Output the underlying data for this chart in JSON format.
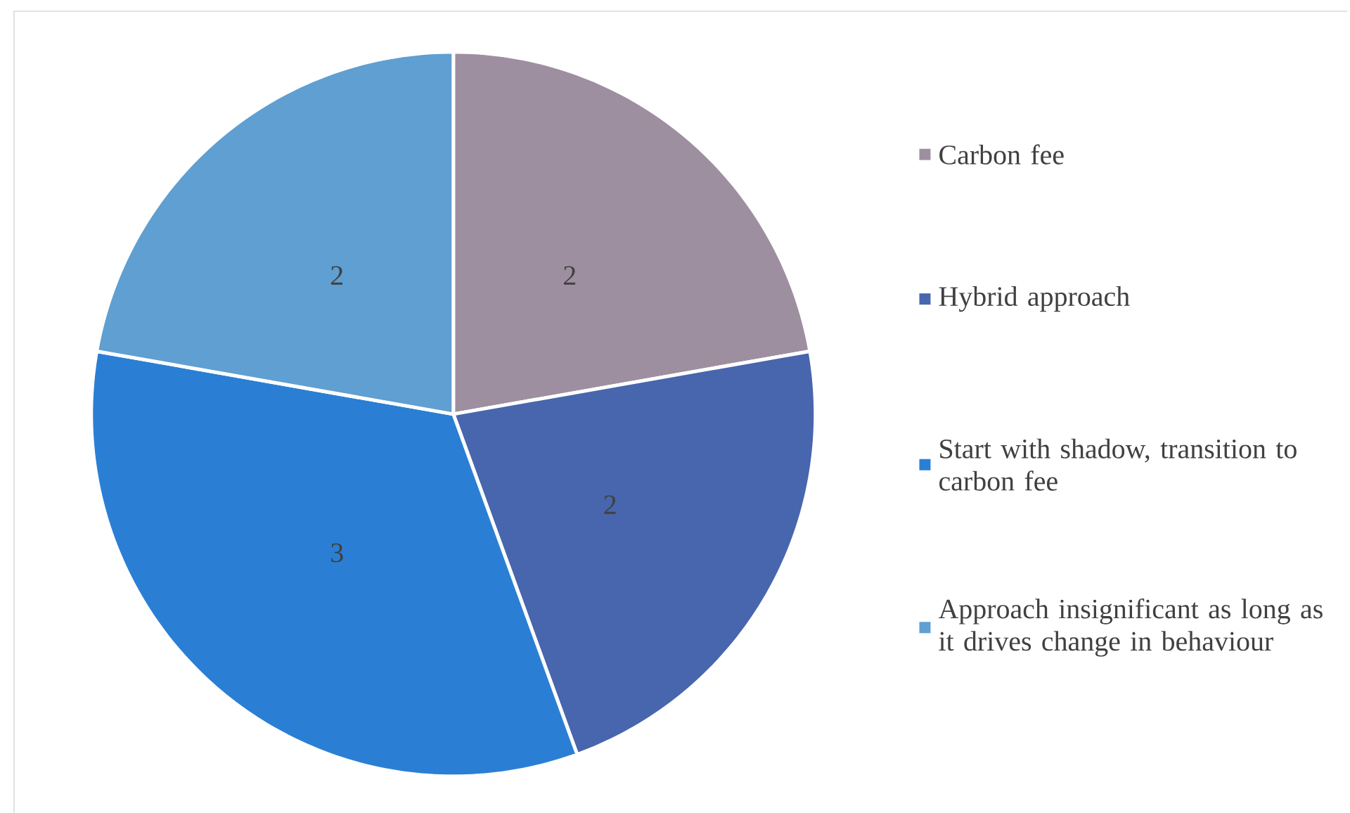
{
  "chart_data": {
    "type": "pie",
    "categories": [
      "Carbon fee",
      "Hybrid approach",
      "Start with shadow, transition to carbon fee",
      "Approach insignificant as long as it drives change in behaviour"
    ],
    "values": [
      2,
      2,
      3,
      2
    ],
    "colors": [
      "#9e8fa0",
      "#4866ad",
      "#2a7fd4",
      "#5f9fd1"
    ],
    "data_labels": true,
    "legend": "right"
  }
}
